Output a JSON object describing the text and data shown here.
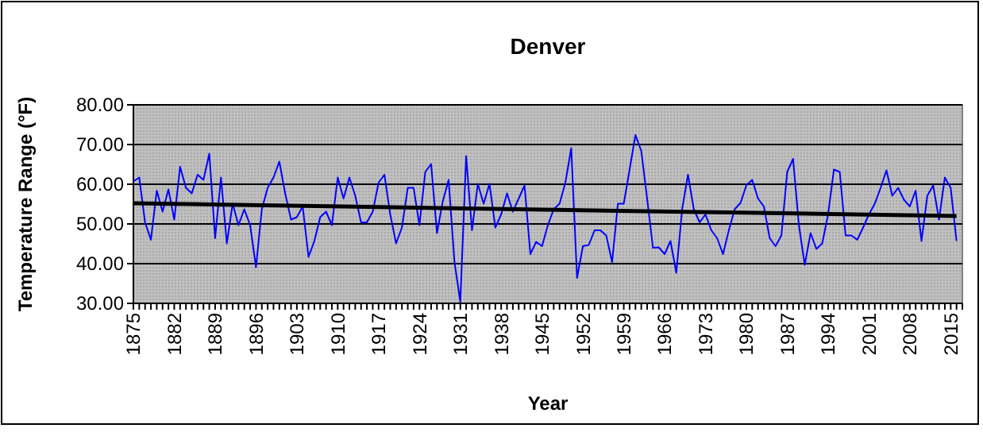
{
  "chart_data": {
    "type": "line",
    "title": "Denver",
    "xlabel": "Year",
    "ylabel": "Temperature Range (°F)",
    "x": [
      1875,
      1876,
      1877,
      1878,
      1879,
      1880,
      1881,
      1882,
      1883,
      1884,
      1885,
      1886,
      1887,
      1888,
      1889,
      1890,
      1891,
      1892,
      1893,
      1894,
      1895,
      1896,
      1897,
      1898,
      1899,
      1900,
      1901,
      1902,
      1903,
      1904,
      1905,
      1906,
      1907,
      1908,
      1909,
      1910,
      1911,
      1912,
      1913,
      1914,
      1915,
      1916,
      1917,
      1918,
      1919,
      1920,
      1921,
      1922,
      1923,
      1924,
      1925,
      1926,
      1927,
      1928,
      1929,
      1930,
      1931,
      1932,
      1933,
      1934,
      1935,
      1936,
      1937,
      1938,
      1939,
      1940,
      1941,
      1942,
      1943,
      1944,
      1945,
      1946,
      1947,
      1948,
      1949,
      1950,
      1951,
      1952,
      1953,
      1954,
      1955,
      1956,
      1957,
      1958,
      1959,
      1960,
      1961,
      1962,
      1963,
      1964,
      1965,
      1966,
      1967,
      1968,
      1969,
      1970,
      1971,
      1972,
      1973,
      1974,
      1975,
      1976,
      1977,
      1978,
      1979,
      1980,
      1981,
      1982,
      1983,
      1984,
      1985,
      1986,
      1987,
      1988,
      1989,
      1990,
      1991,
      1992,
      1993,
      1994,
      1995,
      1996,
      1997,
      1998,
      1999,
      2000,
      2001,
      2002,
      2003,
      2004,
      2005,
      2006,
      2007,
      2008,
      2009,
      2010,
      2011,
      2012,
      2013,
      2014,
      2015,
      2016
    ],
    "series": [
      {
        "color": "#0000ff",
        "values": [
          60.7,
          61.7,
          50.4,
          46,
          58.4,
          53.1,
          58.7,
          51.1,
          64.4,
          59.1,
          57.7,
          62.4,
          61.1,
          67.7,
          46.4,
          61.7,
          45.1,
          55.1,
          49.7,
          53.7,
          49.7,
          39.1,
          53.7,
          59.1,
          61.7,
          65.7,
          57.7,
          51.1,
          51.7,
          54.4,
          41.7,
          45.7,
          51.7,
          53.1,
          49.7,
          61.7,
          56.4,
          61.7,
          57.1,
          50.4,
          50.4,
          53.1,
          60.4,
          62.4,
          52.4,
          45.1,
          49.1,
          59.1,
          59.1,
          49.7,
          63.1,
          65.1,
          47.7,
          55.7,
          61.1,
          40.4,
          30.4,
          67.1,
          48.4,
          60.1,
          55.1,
          60.1,
          49.1,
          52.4,
          57.7,
          53.1,
          56.4,
          59.7,
          42.4,
          45.5,
          44.4,
          49.7,
          53.7,
          55.1,
          60.4,
          69.1,
          36.4,
          44.4,
          44.7,
          48.4,
          48.4,
          47.1,
          40.4,
          55.1,
          55.1,
          63.7,
          72.4,
          68.4,
          56.4,
          44,
          44.1,
          42.4,
          45.7,
          37.7,
          53.7,
          62.4,
          53.7,
          50.4,
          52.4,
          48.4,
          46.4,
          42.4,
          48.4,
          53.7,
          55.3,
          59.7,
          61.1,
          56.4,
          54.4,
          46.4,
          44.4,
          47.1,
          63.1,
          66.4,
          49.7,
          39.7,
          47.7,
          43.7,
          45.1,
          52.4,
          63.7,
          63.1,
          47.1,
          47.1,
          46,
          49.1,
          52.4,
          55.1,
          59.1,
          63.5,
          57.1,
          59.1,
          56.1,
          54.4,
          58.4,
          45.7,
          57.1,
          59.7,
          51.1,
          61.7,
          59.1,
          45.7
        ]
      },
      {
        "color": "#000000",
        "x": [
          1875,
          2016
        ],
        "values": [
          55.2,
          52.0
        ]
      }
    ],
    "xlim": [
      1875,
      2017
    ],
    "xticks": [
      1875,
      1882,
      1889,
      1896,
      1903,
      1910,
      1917,
      1924,
      1931,
      1938,
      1945,
      1952,
      1959,
      1966,
      1973,
      1980,
      1987,
      1994,
      2001,
      2008,
      2015
    ],
    "ylim": [
      30,
      80
    ],
    "yticks": [
      {
        "value": 30,
        "label": "30.00"
      },
      {
        "value": 40,
        "label": "40.00"
      },
      {
        "value": 50,
        "label": "50.00"
      },
      {
        "value": 60,
        "label": "60.00"
      },
      {
        "value": 70,
        "label": "70.00"
      },
      {
        "value": 80,
        "label": "80.00"
      }
    ],
    "grid": "y",
    "marker": "none",
    "line_style": "solid"
  }
}
